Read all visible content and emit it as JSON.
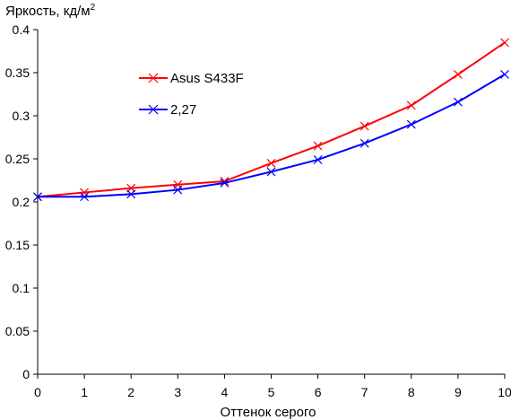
{
  "chart_data": {
    "type": "line",
    "ylabel": "Яркость, кд/м",
    "ylabel_superscript": "2",
    "xlabel": "Оттенок серого",
    "x": [
      0,
      1,
      2,
      3,
      4,
      5,
      6,
      7,
      8,
      9,
      10
    ],
    "xlim": [
      0,
      10
    ],
    "ylim": [
      0,
      0.4
    ],
    "x_ticks": [
      "0",
      "1",
      "2",
      "3",
      "4",
      "5",
      "6",
      "7",
      "8",
      "9",
      "10"
    ],
    "y_ticks": [
      "0",
      "0.05",
      "0.1",
      "0.15",
      "0.2",
      "0.25",
      "0.3",
      "0.35",
      "0.4"
    ],
    "y_tick_values": [
      0,
      0.05,
      0.1,
      0.15,
      0.2,
      0.25,
      0.3,
      0.35,
      0.4
    ],
    "grid": false,
    "legend_position": "upper-left inside",
    "series": [
      {
        "name": "Asus S433F",
        "color": "#ff0000",
        "values": [
          0.206,
          0.211,
          0.216,
          0.22,
          0.224,
          0.245,
          0.265,
          0.288,
          0.312,
          0.348,
          0.385
        ]
      },
      {
        "name": "2,27",
        "color": "#0000ff",
        "values": [
          0.206,
          0.206,
          0.209,
          0.214,
          0.222,
          0.235,
          0.249,
          0.268,
          0.29,
          0.316,
          0.348
        ]
      }
    ]
  }
}
